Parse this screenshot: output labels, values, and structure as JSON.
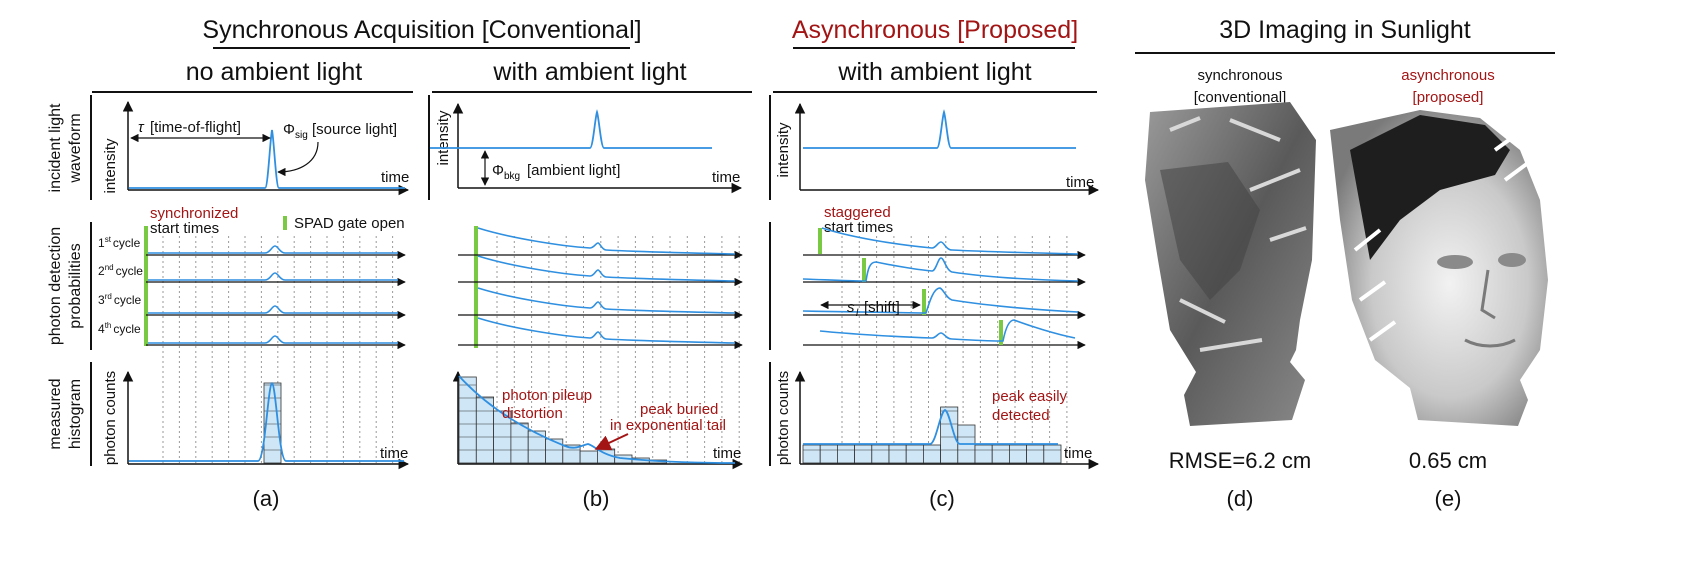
{
  "headers": {
    "sync_title": "Synchronous Acquisition [Conventional]",
    "async_title": "Asynchronous [Proposed]",
    "imaging_title": "3D Imaging in Sunlight",
    "col_a": "no ambient light",
    "col_b": "with ambient light",
    "col_c": "with ambient light"
  },
  "row_labels": {
    "row1": [
      "incident light",
      "waveform"
    ],
    "row2": [
      "photon detection",
      "probabilities"
    ],
    "row3": [
      "measured",
      "histogram"
    ]
  },
  "axis_labels": {
    "intensity": "intensity",
    "time": "time",
    "photon_counts": "photon counts"
  },
  "annotations": {
    "tau_sym": "τ",
    "tau_text": "[time-of-flight]",
    "phi_sig_sym": "Φ",
    "phi_sig_sub": "sig",
    "phi_sig_text": "[source light]",
    "phi_bkg_sym": "Φ",
    "phi_bkg_sub": "bkg",
    "phi_bkg_text": "[ambient light]",
    "synchronized": "synchronized",
    "start_times": "start times",
    "spad_gate": "SPAD gate open",
    "staggered": "staggered",
    "staggered_start": "start times",
    "shift_sym": "s",
    "shift_sub": "l",
    "shift_text": "[shift]",
    "pileup_1": "photon pileup",
    "pileup_2": "distortion",
    "buried_1": "peak buried",
    "buried_2": "in exponential tail",
    "easy_1": "peak easily",
    "easy_2": "detected"
  },
  "cycles": [
    {
      "n": "1",
      "sup": "st",
      "label": "cycle"
    },
    {
      "n": "2",
      "sup": "nd",
      "label": "cycle"
    },
    {
      "n": "3",
      "sup": "rd",
      "label": "cycle"
    },
    {
      "n": "4",
      "sup": "th",
      "label": "cycle"
    }
  ],
  "imaging": {
    "sync_label_1": "synchronous",
    "sync_label_2": "[conventional]",
    "async_label_1": "asynchronous",
    "async_label_2": "[proposed]",
    "rmse_sync": "RMSE=6.2 cm",
    "rmse_async": "0.65 cm"
  },
  "captions": [
    "(a)",
    "(b)",
    "(c)",
    "(d)",
    "(e)"
  ],
  "colors": {
    "curve": "#2f8fe0",
    "gate": "#7ac943",
    "hist_fill": "#cfe6f7",
    "accent_red": "#a31515"
  }
}
